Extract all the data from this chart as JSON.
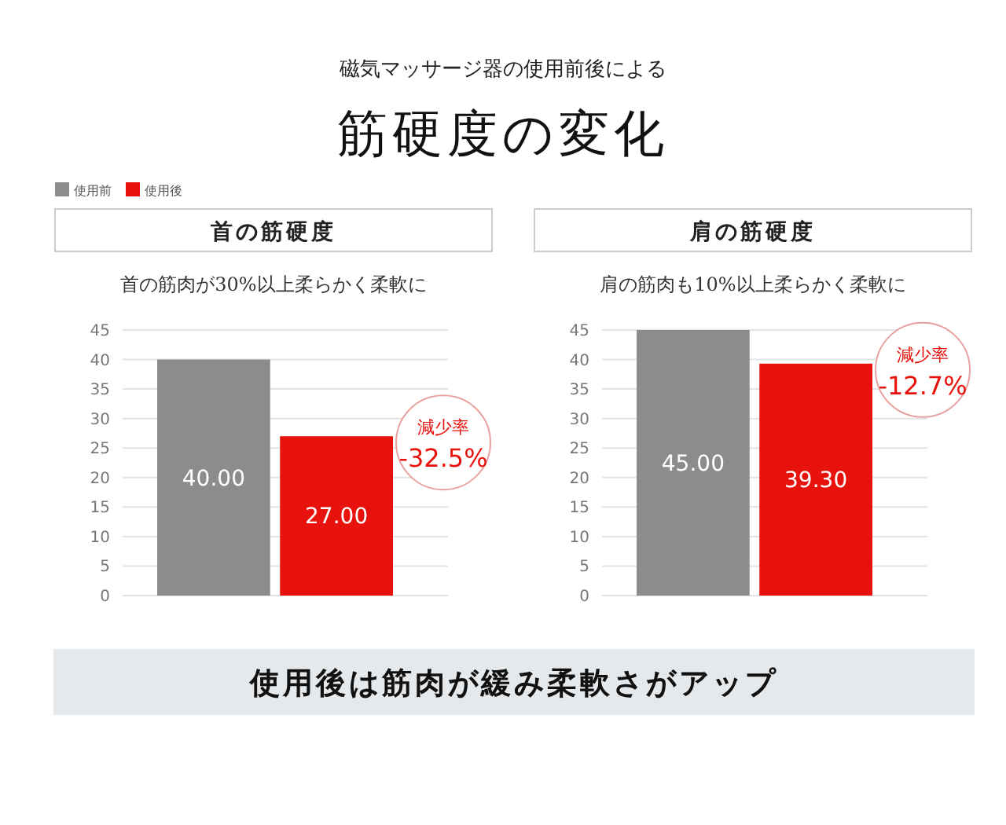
{
  "chart_data": [
    {
      "type": "other",
      "title": "筋硬度の変化",
      "subtitle": "磁気マッサージ器の使用前後による"
    },
    {
      "type": "bar",
      "title": "首の筋硬度",
      "subtitle": "首の筋肉が30%以上柔らかく柔軟に",
      "categories": [
        null
      ],
      "series": [
        {
          "name": "使用前",
          "color": "#8c8c8c",
          "values": [
            40.0
          ],
          "value_labels": [
            "40.00"
          ]
        },
        {
          "name": "使用後",
          "color": "#e8120c",
          "values": [
            27.0
          ],
          "value_labels": [
            "27.00"
          ]
        }
      ],
      "ylim": [
        0,
        45
      ],
      "yticks": [
        0,
        5,
        10,
        15,
        20,
        25,
        30,
        35,
        40,
        45
      ],
      "grid": "y",
      "legend": "top left",
      "annotations": [
        "減少率\n-32.5%"
      ]
    },
    {
      "type": "bar",
      "title": "肩の筋硬度",
      "subtitle": "肩の筋肉も10%以上柔らかく柔軟に",
      "categories": [
        null
      ],
      "series": [
        {
          "color": "#8c8c8c",
          "values": [
            45.0
          ],
          "value_labels": [
            "45.00"
          ]
        },
        {
          "color": "#e8120c",
          "values": [
            39.3
          ],
          "value_labels": [
            "39.30"
          ]
        }
      ],
      "ylim": [
        0,
        45
      ],
      "yticks": [
        0,
        5,
        10,
        15,
        20,
        25,
        30,
        35,
        40,
        45
      ],
      "grid": "y",
      "annotations": [
        "減少率\n-12.7%"
      ]
    },
    {
      "type": "other",
      "title": "使用後は筋肉が緩み柔軟さがアップ"
    }
  ]
}
